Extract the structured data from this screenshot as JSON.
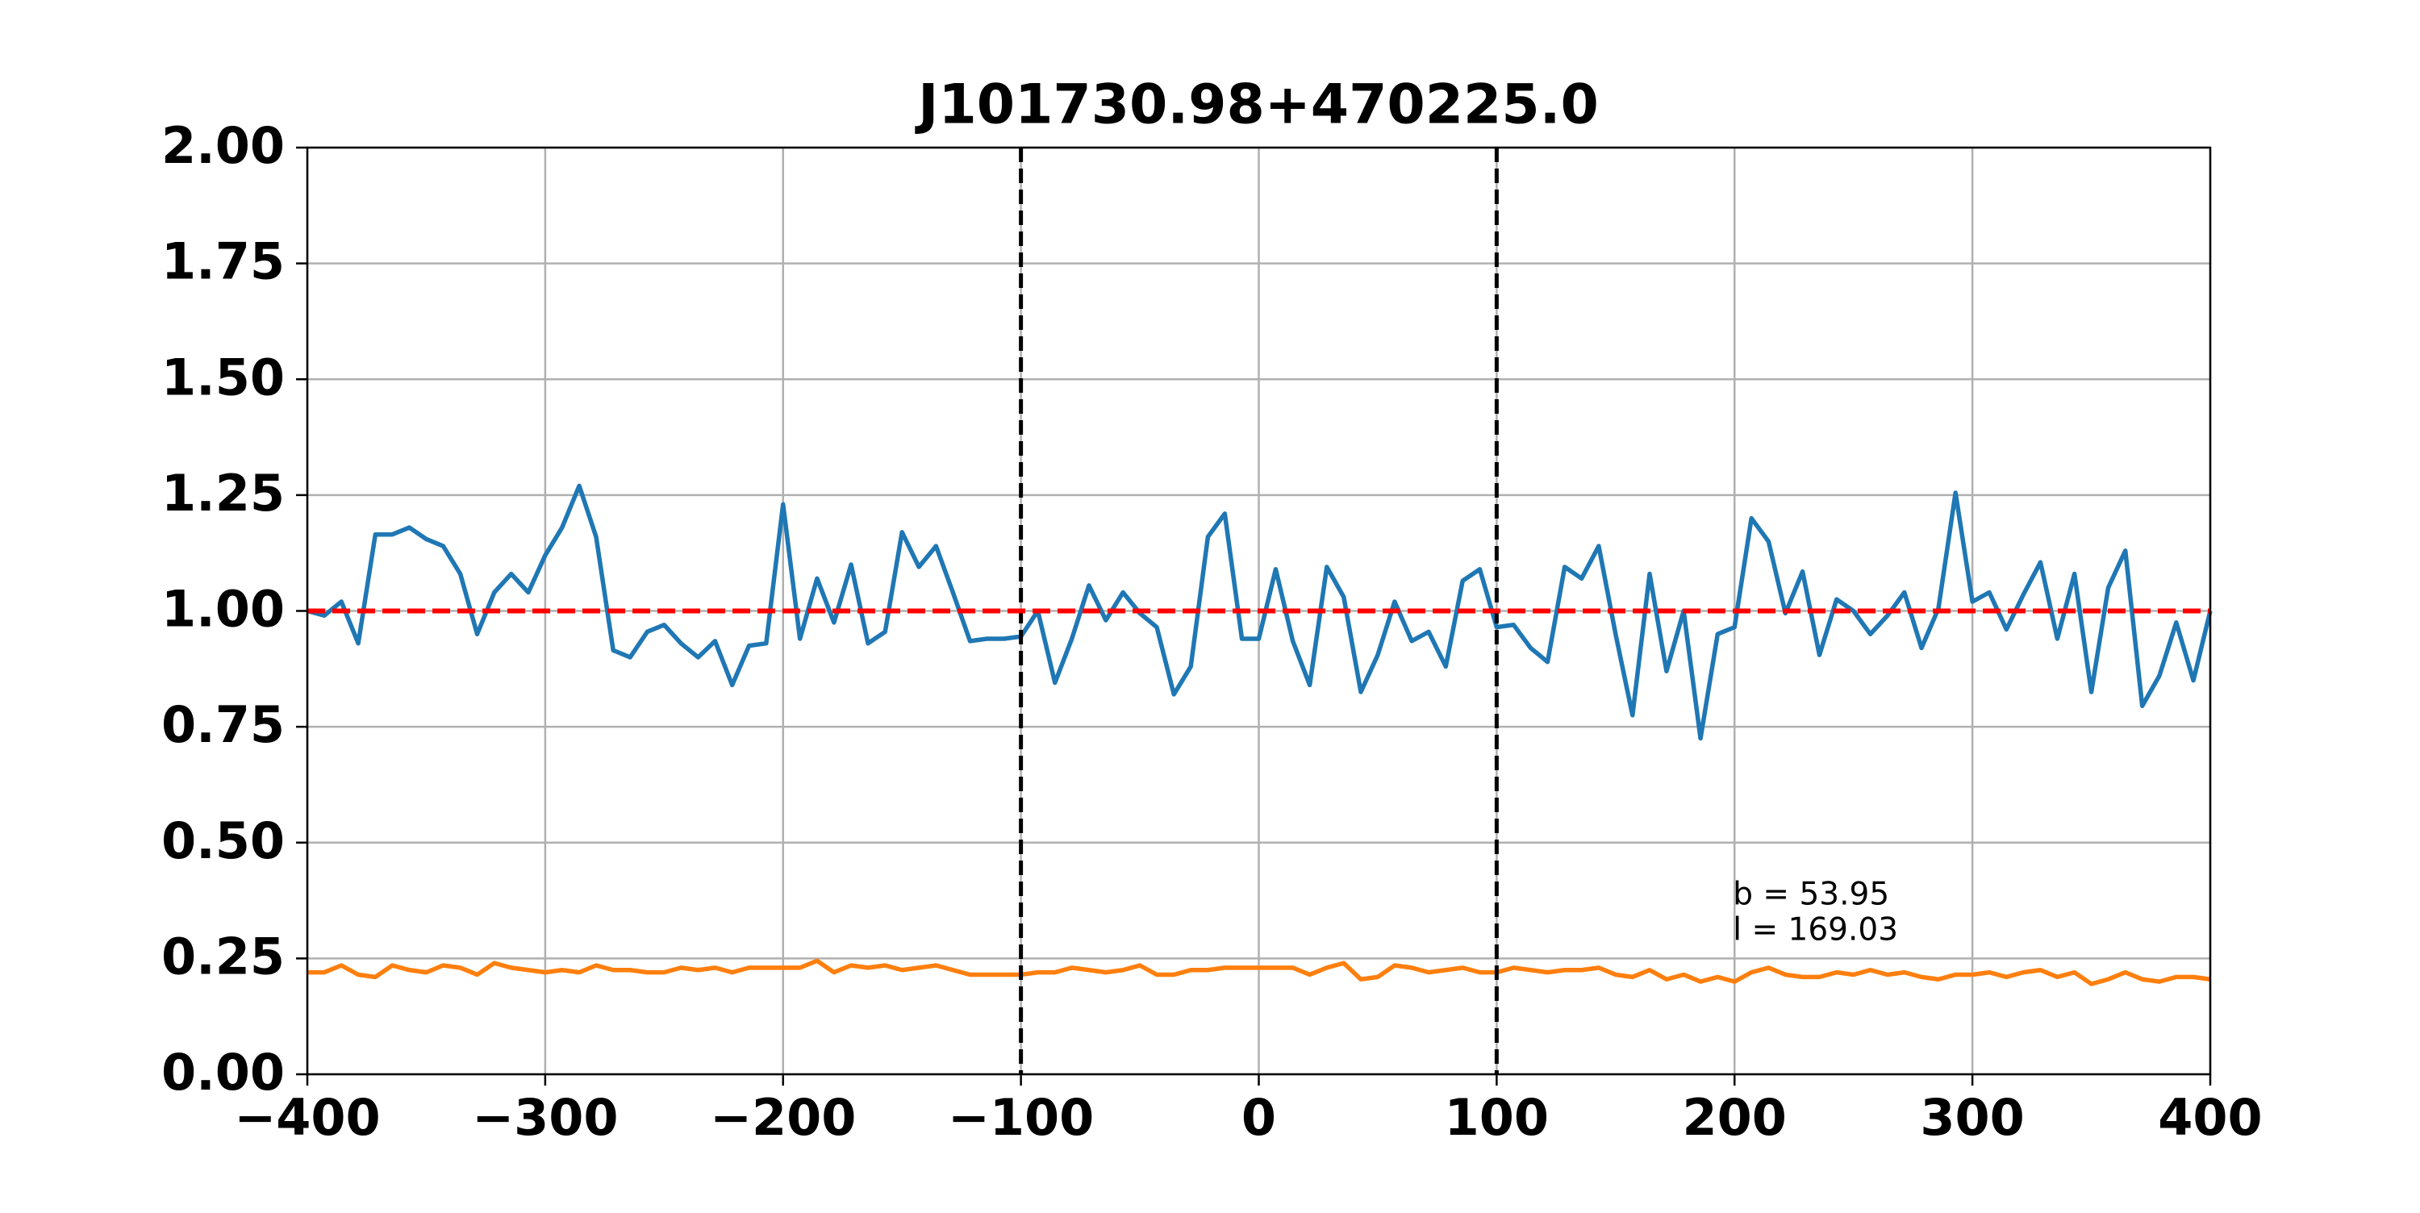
{
  "chart_data": {
    "type": "line",
    "title": "J101730.98+470225.0",
    "x": [
      -400,
      -392.9,
      -385.7,
      -378.6,
      -371.4,
      -364.3,
      -357.1,
      -350,
      -342.9,
      -335.7,
      -328.6,
      -321.4,
      -314.3,
      -307.1,
      -300,
      -292.9,
      -285.7,
      -278.6,
      -271.4,
      -264.3,
      -257.1,
      -250,
      -242.9,
      -235.7,
      -228.6,
      -221.4,
      -214.3,
      -207.1,
      -200,
      -192.9,
      -185.7,
      -178.6,
      -171.4,
      -164.3,
      -157.1,
      -150,
      -142.9,
      -135.7,
      -128.6,
      -121.4,
      -114.3,
      -107.1,
      -100,
      -92.9,
      -85.7,
      -78.6,
      -71.4,
      -64.3,
      -57.1,
      -50,
      -42.9,
      -35.7,
      -28.6,
      -21.4,
      -14.3,
      -7.1,
      0,
      7.1,
      14.3,
      21.4,
      28.6,
      35.7,
      42.9,
      50,
      57.1,
      64.3,
      71.4,
      78.6,
      85.7,
      92.9,
      100,
      107.1,
      114.3,
      121.4,
      128.6,
      135.7,
      142.9,
      150,
      157.1,
      164.3,
      171.4,
      178.6,
      185.7,
      192.9,
      200,
      207.1,
      214.3,
      221.4,
      228.6,
      235.7,
      242.9,
      250,
      257.1,
      264.3,
      271.4,
      278.6,
      285.7,
      292.9,
      300,
      307.1,
      314.3,
      321.4,
      328.6,
      335.7,
      342.9,
      350,
      357.1,
      364.3,
      371.4,
      378.6,
      385.7,
      392.9,
      400
    ],
    "series": [
      {
        "color": "#1f77b4",
        "values": [
          1.0,
          0.99,
          1.02,
          0.93,
          1.165,
          1.165,
          1.18,
          1.155,
          1.14,
          1.08,
          0.95,
          1.04,
          1.08,
          1.04,
          1.12,
          1.18,
          1.27,
          1.16,
          0.915,
          0.9,
          0.955,
          0.97,
          0.93,
          0.9,
          0.935,
          0.84,
          0.925,
          0.93,
          1.23,
          0.94,
          1.07,
          0.975,
          1.1,
          0.93,
          0.955,
          1.17,
          1.095,
          1.14,
          1.04,
          0.935,
          0.94,
          0.94,
          0.945,
          1.0,
          0.845,
          0.94,
          1.055,
          0.98,
          1.04,
          0.995,
          0.965,
          0.82,
          0.88,
          1.16,
          1.21,
          0.94,
          0.94,
          1.09,
          0.935,
          0.84,
          1.095,
          1.03,
          0.825,
          0.905,
          1.02,
          0.935,
          0.955,
          0.88,
          1.065,
          1.09,
          0.965,
          0.97,
          0.92,
          0.89,
          1.095,
          1.07,
          1.14,
          0.95,
          0.775,
          1.08,
          0.87,
          1.0,
          0.725,
          0.95,
          0.965,
          1.2,
          1.15,
          0.995,
          1.085,
          0.905,
          1.025,
          1.0,
          0.95,
          0.99,
          1.04,
          0.92,
          1.005,
          1.255,
          1.02,
          1.04,
          0.96,
          1.035,
          1.105,
          0.94,
          1.08,
          0.825,
          1.05,
          1.13,
          0.795,
          0.86,
          0.975,
          0.85,
          1.0
        ]
      },
      {
        "color": "#ff7f0e",
        "values": [
          0.22,
          0.22,
          0.235,
          0.215,
          0.21,
          0.235,
          0.225,
          0.22,
          0.235,
          0.23,
          0.215,
          0.24,
          0.23,
          0.225,
          0.22,
          0.225,
          0.22,
          0.235,
          0.225,
          0.225,
          0.22,
          0.22,
          0.23,
          0.225,
          0.23,
          0.22,
          0.23,
          0.23,
          0.23,
          0.23,
          0.245,
          0.22,
          0.235,
          0.23,
          0.235,
          0.225,
          0.23,
          0.235,
          0.225,
          0.215,
          0.215,
          0.215,
          0.215,
          0.22,
          0.22,
          0.23,
          0.225,
          0.22,
          0.225,
          0.235,
          0.215,
          0.215,
          0.225,
          0.225,
          0.23,
          0.23,
          0.23,
          0.23,
          0.23,
          0.215,
          0.23,
          0.24,
          0.205,
          0.21,
          0.235,
          0.23,
          0.22,
          0.225,
          0.23,
          0.22,
          0.22,
          0.23,
          0.225,
          0.22,
          0.225,
          0.225,
          0.23,
          0.215,
          0.21,
          0.225,
          0.205,
          0.215,
          0.2,
          0.21,
          0.2,
          0.22,
          0.23,
          0.215,
          0.21,
          0.21,
          0.22,
          0.215,
          0.225,
          0.215,
          0.22,
          0.21,
          0.205,
          0.215,
          0.215,
          0.22,
          0.21,
          0.22,
          0.225,
          0.21,
          0.22,
          0.195,
          0.205,
          0.22,
          0.205,
          0.2,
          0.21,
          0.21,
          0.205
        ]
      }
    ],
    "hline": {
      "value": 1,
      "color": "#ff0000"
    },
    "vlines": {
      "values": [
        -100,
        100
      ],
      "color": "#000000"
    },
    "annotations": [
      "b = 53.95",
      "l = 169.03"
    ],
    "xlim": [
      -400,
      400
    ],
    "xticks": [
      {
        "value": -400,
        "label": "−400"
      },
      {
        "value": -300,
        "label": "−300"
      },
      {
        "value": -200,
        "label": "−200"
      },
      {
        "value": -100,
        "label": "−100"
      },
      0,
      100,
      200,
      300,
      400
    ],
    "ylim": [
      0,
      2
    ],
    "yticks": [
      {
        "value": 0,
        "label": "0.00"
      },
      {
        "value": 0.25,
        "label": "0.25"
      },
      {
        "value": 0.5,
        "label": "0.50"
      },
      {
        "value": 0.75,
        "label": "0.75"
      },
      {
        "value": 1,
        "label": "1.00"
      },
      {
        "value": 1.25,
        "label": "1.25"
      },
      {
        "value": 1.5,
        "label": "1.50"
      },
      {
        "value": 1.75,
        "label": "1.75"
      },
      {
        "value": 2,
        "label": "2.00"
      }
    ],
    "grid": true
  }
}
